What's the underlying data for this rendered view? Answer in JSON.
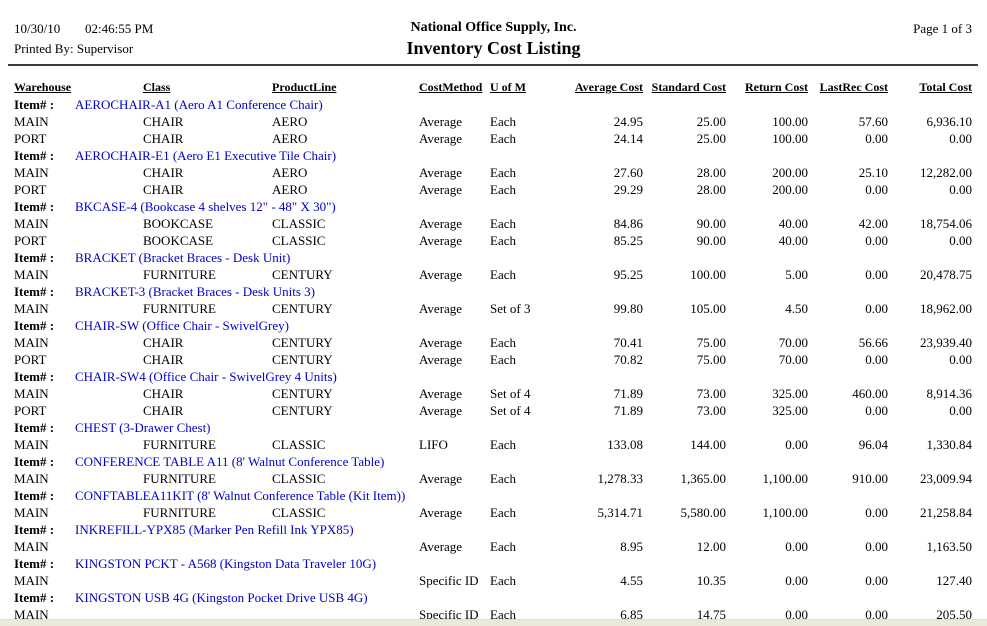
{
  "header": {
    "date": "10/30/10",
    "time": "02:46:55 PM",
    "printed_by": "Printed By: Supervisor",
    "company": "National Office Supply, Inc.",
    "title": "Inventory Cost Listing",
    "page": "Page 1 of 3"
  },
  "table": {
    "item_label": "Item# :",
    "columns": [
      "Warehouse",
      "Class",
      "ProductLine",
      "CostMethod",
      "U of M",
      "Average Cost",
      "Standard Cost",
      "Return Cost",
      "LastRec Cost",
      "Total Cost"
    ],
    "groups": [
      {
        "item": "AEROCHAIR-A1 (Aero A1 Conference Chair)",
        "rows": [
          [
            "MAIN",
            "CHAIR",
            "AERO",
            "Average",
            "Each",
            "24.95",
            "25.00",
            "100.00",
            "57.60",
            "6,936.10"
          ],
          [
            "PORT",
            "CHAIR",
            "AERO",
            "Average",
            "Each",
            "24.14",
            "25.00",
            "100.00",
            "0.00",
            "0.00"
          ]
        ]
      },
      {
        "item": "AEROCHAIR-E1 (Aero E1 Executive Tile Chair)",
        "rows": [
          [
            "MAIN",
            "CHAIR",
            "AERO",
            "Average",
            "Each",
            "27.60",
            "28.00",
            "200.00",
            "25.10",
            "12,282.00"
          ],
          [
            "PORT",
            "CHAIR",
            "AERO",
            "Average",
            "Each",
            "29.29",
            "28.00",
            "200.00",
            "0.00",
            "0.00"
          ]
        ]
      },
      {
        "item": "BKCASE-4 (Bookcase 4 shelves 12\" - 48\" X 30\")",
        "rows": [
          [
            "MAIN",
            "BOOKCASE",
            "CLASSIC",
            "Average",
            "Each",
            "84.86",
            "90.00",
            "40.00",
            "42.00",
            "18,754.06"
          ],
          [
            "PORT",
            "BOOKCASE",
            "CLASSIC",
            "Average",
            "Each",
            "85.25",
            "90.00",
            "40.00",
            "0.00",
            "0.00"
          ]
        ]
      },
      {
        "item": "BRACKET (Bracket Braces - Desk Unit)",
        "rows": [
          [
            "MAIN",
            "FURNITURE",
            "CENTURY",
            "Average",
            "Each",
            "95.25",
            "100.00",
            "5.00",
            "0.00",
            "20,478.75"
          ]
        ]
      },
      {
        "item": "BRACKET-3 (Bracket Braces - Desk Units 3)",
        "rows": [
          [
            "MAIN",
            "FURNITURE",
            "CENTURY",
            "Average",
            "Set of 3",
            "99.80",
            "105.00",
            "4.50",
            "0.00",
            "18,962.00"
          ]
        ]
      },
      {
        "item": "CHAIR-SW (Office Chair - SwivelGrey)",
        "rows": [
          [
            "MAIN",
            "CHAIR",
            "CENTURY",
            "Average",
            "Each",
            "70.41",
            "75.00",
            "70.00",
            "56.66",
            "23,939.40"
          ],
          [
            "PORT",
            "CHAIR",
            "CENTURY",
            "Average",
            "Each",
            "70.82",
            "75.00",
            "70.00",
            "0.00",
            "0.00"
          ]
        ]
      },
      {
        "item": "CHAIR-SW4 (Office Chair - SwivelGrey 4 Units)",
        "rows": [
          [
            "MAIN",
            "CHAIR",
            "CENTURY",
            "Average",
            "Set of 4",
            "71.89",
            "73.00",
            "325.00",
            "460.00",
            "8,914.36"
          ],
          [
            "PORT",
            "CHAIR",
            "CENTURY",
            "Average",
            "Set of 4",
            "71.89",
            "73.00",
            "325.00",
            "0.00",
            "0.00"
          ]
        ]
      },
      {
        "item": "CHEST (3-Drawer Chest)",
        "rows": [
          [
            "MAIN",
            "FURNITURE",
            "CLASSIC",
            "LIFO",
            "Each",
            "133.08",
            "144.00",
            "0.00",
            "96.04",
            "1,330.84"
          ]
        ]
      },
      {
        "item": "CONFERENCE TABLE A11 (8' Walnut Conference Table)",
        "rows": [
          [
            "MAIN",
            "FURNITURE",
            "CLASSIC",
            "Average",
            "Each",
            "1,278.33",
            "1,365.00",
            "1,100.00",
            "910.00",
            "23,009.94"
          ]
        ]
      },
      {
        "item": "CONFTABLEA11KIT (8' Walnut Conference Table (Kit Item))",
        "rows": [
          [
            "MAIN",
            "FURNITURE",
            "CLASSIC",
            "Average",
            "Each",
            "5,314.71",
            "5,580.00",
            "1,100.00",
            "0.00",
            "21,258.84"
          ]
        ]
      },
      {
        "item": "INKREFILL-YPX85 (Marker Pen Refill Ink YPX85)",
        "rows": [
          [
            "MAIN",
            "",
            "",
            "Average",
            "Each",
            "8.95",
            "12.00",
            "0.00",
            "0.00",
            "1,163.50"
          ]
        ]
      },
      {
        "item": "KINGSTON PCKT - A568 (Kingston Data Traveler 10G)",
        "rows": [
          [
            "MAIN",
            "",
            "",
            "Specific ID",
            "Each",
            "4.55",
            "10.35",
            "0.00",
            "0.00",
            "127.40"
          ]
        ]
      },
      {
        "item": "KINGSTON USB 4G (Kingston Pocket Drive USB 4G)",
        "rows": [
          [
            "MAIN",
            "",
            "",
            "Specific ID",
            "Each",
            "6.85",
            "14.75",
            "0.00",
            "0.00",
            "205.50"
          ]
        ]
      }
    ]
  },
  "colors": {
    "item_link": "#0000CC",
    "window_chrome": "#ECE9D8"
  }
}
